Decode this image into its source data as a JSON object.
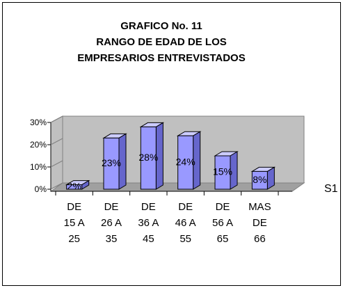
{
  "chart_data": {
    "type": "bar",
    "title": [
      "GRAFICO No. 11",
      "RANGO DE EDAD DE LOS",
      "EMPRESARIOS ENTREVISTADOS"
    ],
    "categories": [
      "DE\n15 A\n25",
      "DE\n26 A\n35",
      "DE\n36 A\n45",
      "DE\n46 A\n55",
      "DE\n56 A\n65",
      "MAS\nDE\n66"
    ],
    "series": [
      {
        "name": "S1",
        "color": "#9999ff",
        "values": [
          2,
          23,
          28,
          24,
          15,
          8
        ],
        "value_labels": [
          "2%",
          "23%",
          "28%",
          "24%",
          "15%",
          "8%"
        ]
      }
    ],
    "ylim": [
      0,
      30
    ],
    "yticks": [
      {
        "value": 0,
        "label": "0%"
      },
      {
        "value": 10,
        "label": "10%"
      },
      {
        "value": 20,
        "label": "20%"
      },
      {
        "value": 30,
        "label": "30%"
      }
    ],
    "legend": "right"
  }
}
